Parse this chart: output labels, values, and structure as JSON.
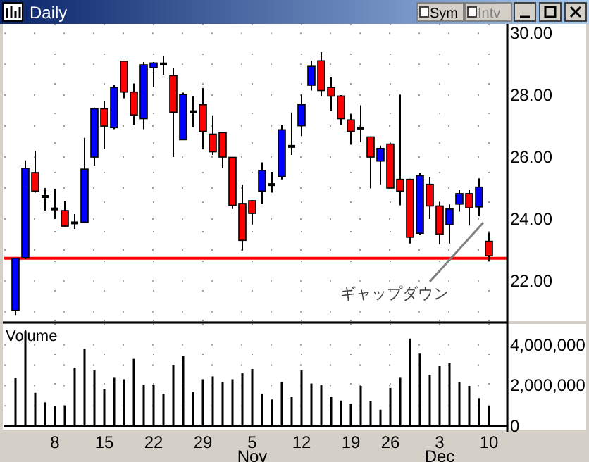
{
  "chart_data": [
    {
      "type": "candlestick",
      "title": "Daily",
      "annotations": [
        "Sym",
        "Intv",
        "ギャップダウン"
      ],
      "categories": [
        null,
        null,
        null,
        null,
        null,
        null,
        null,
        null,
        null,
        null,
        null,
        null,
        null,
        null,
        null,
        null,
        null,
        null,
        null,
        null,
        null,
        null,
        null,
        null,
        null,
        null,
        null,
        null,
        null,
        null,
        null,
        null,
        null,
        null,
        null,
        null,
        null,
        null,
        null,
        null,
        null,
        null,
        null,
        null,
        null,
        null,
        null,
        null,
        null
      ],
      "ohlc": [
        [
          21.05,
          22.75,
          20.9,
          22.73
        ],
        [
          22.75,
          25.89,
          22.7,
          25.64
        ],
        [
          25.5,
          26.2,
          24.85,
          24.9
        ],
        [
          24.75,
          25.0,
          24.27,
          24.7
        ],
        [
          24.35,
          24.97,
          24.0,
          24.3
        ],
        [
          24.27,
          24.58,
          23.75,
          23.77
        ],
        [
          23.9,
          24.16,
          23.68,
          23.85
        ],
        [
          23.9,
          26.62,
          23.88,
          25.61
        ],
        [
          26.0,
          27.6,
          25.72,
          27.56
        ],
        [
          27.56,
          27.8,
          26.25,
          27.0
        ],
        [
          26.95,
          28.32,
          26.9,
          28.25
        ],
        [
          29.1,
          29.1,
          27.9,
          28.1
        ],
        [
          28.1,
          28.38,
          27.04,
          27.36
        ],
        [
          27.24,
          29.07,
          26.9,
          28.98
        ],
        [
          28.89,
          29.07,
          28.25,
          29.04
        ],
        [
          29.02,
          29.26,
          28.66,
          29.0
        ],
        [
          28.63,
          28.89,
          26.0,
          27.45
        ],
        [
          26.56,
          28.08,
          26.56,
          28.02
        ],
        [
          27.48,
          27.97,
          26.98,
          27.45
        ],
        [
          27.69,
          28.23,
          26.25,
          26.83
        ],
        [
          26.74,
          27.35,
          26.07,
          26.17
        ],
        [
          26.79,
          26.79,
          25.64,
          26.0
        ],
        [
          25.99,
          26.0,
          24.32,
          24.44
        ],
        [
          24.5,
          25.11,
          22.98,
          23.31
        ],
        [
          24.59,
          24.6,
          23.82,
          24.18
        ],
        [
          24.9,
          25.83,
          24.5,
          25.57
        ],
        [
          25.12,
          25.52,
          24.85,
          25.1
        ],
        [
          25.37,
          27.04,
          25.28,
          26.88
        ],
        [
          26.36,
          27.44,
          26.07,
          26.33
        ],
        [
          27.01,
          28.02,
          26.68,
          27.69
        ],
        [
          28.32,
          29.11,
          28.15,
          28.93
        ],
        [
          29.11,
          29.39,
          27.97,
          28.15
        ],
        [
          28.25,
          28.57,
          27.5,
          27.97
        ],
        [
          27.97,
          28.0,
          27.04,
          27.24
        ],
        [
          27.2,
          27.39,
          26.4,
          26.83
        ],
        [
          26.95,
          27.67,
          26.48,
          26.92
        ],
        [
          26.65,
          26.65,
          24.99,
          26.0
        ],
        [
          25.87,
          26.37,
          25.12,
          26.28
        ],
        [
          26.42,
          26.45,
          25.0,
          25.0
        ],
        [
          25.28,
          28.02,
          24.44,
          24.9
        ],
        [
          25.28,
          25.3,
          23.21,
          23.41
        ],
        [
          23.54,
          25.49,
          23.48,
          25.4
        ],
        [
          25.12,
          25.34,
          24.0,
          24.42
        ],
        [
          24.42,
          24.55,
          23.18,
          23.51
        ],
        [
          23.82,
          24.47,
          23.21,
          24.32
        ],
        [
          24.48,
          24.93,
          24.24,
          24.82
        ],
        [
          24.82,
          24.93,
          23.79,
          24.36
        ],
        [
          24.39,
          25.31,
          24.09,
          25.03
        ],
        [
          23.28,
          23.56,
          22.65,
          22.81
        ]
      ],
      "ylim": [
        20.7,
        30.3
      ],
      "yticks": [
        {
          "value": 21,
          "label": null
        },
        {
          "value": 22,
          "label": "22.00"
        },
        {
          "value": 23,
          "label": null
        },
        {
          "value": 24,
          "label": "24.00"
        },
        {
          "value": 25,
          "label": null
        },
        {
          "value": 26,
          "label": "26.00"
        },
        {
          "value": 27,
          "label": null
        },
        {
          "value": 28,
          "label": "28.00"
        },
        {
          "value": 29,
          "label": null
        },
        {
          "value": 30,
          "label": "30.00"
        }
      ],
      "grid": true,
      "tick_labels": "y",
      "ref_lines": [
        {
          "axis": "y",
          "value": 22.73,
          "color": "#ff0000"
        }
      ]
    },
    {
      "type": "bar",
      "title": "Volume",
      "color": "#000000",
      "categories": [
        null,
        null,
        null,
        null,
        "8",
        null,
        null,
        null,
        null,
        "15",
        null,
        null,
        null,
        null,
        "22",
        null,
        null,
        null,
        null,
        "29",
        null,
        null,
        null,
        null,
        "5\nNov",
        null,
        null,
        null,
        null,
        "12",
        null,
        null,
        null,
        null,
        "19",
        null,
        null,
        null,
        "26",
        null,
        null,
        null,
        null,
        "3\nDec",
        null,
        null,
        null,
        null,
        "10"
      ],
      "values": [
        2360000,
        4670000,
        1640000,
        1170000,
        980000,
        1020000,
        2880000,
        3790000,
        2740000,
        1810000,
        2380000,
        2310000,
        3310000,
        2020000,
        2020000,
        1600000,
        3020000,
        3450000,
        1670000,
        2310000,
        2450000,
        2170000,
        2310000,
        2600000,
        2810000,
        1600000,
        1310000,
        2170000,
        1450000,
        2740000,
        2100000,
        2020000,
        1450000,
        1260000,
        1100000,
        1980000,
        1240000,
        810000,
        1880000,
        2380000,
        4310000,
        3600000,
        2520000,
        2950000,
        3100000,
        2170000,
        1980000,
        1380000,
        1020000
      ],
      "ylim": [
        -170000,
        5030000
      ],
      "yticks": [
        {
          "value": 0,
          "label": "0"
        },
        {
          "value": 1000000,
          "label": null
        },
        {
          "value": 2000000,
          "label": "2,000,000"
        },
        {
          "value": 3000000,
          "label": null
        },
        {
          "value": 4000000,
          "label": "4,000,000"
        }
      ],
      "grid": true
    }
  ]
}
